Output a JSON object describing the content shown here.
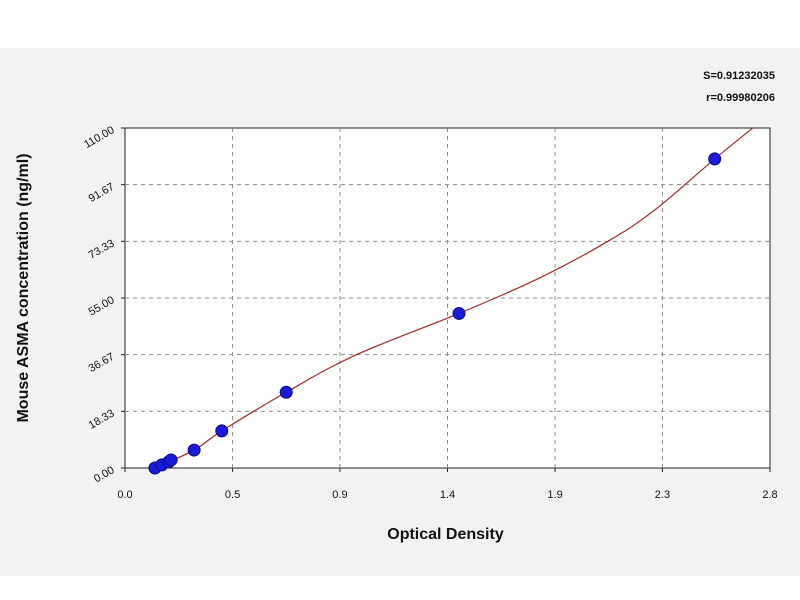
{
  "chart_data": {
    "type": "scatter",
    "xlabel": "Optical Density",
    "ylabel": "Mouse ASMA concentration (ng/ml)",
    "xlim": [
      0.0,
      2.8
    ],
    "ylim": [
      0.0,
      110.0
    ],
    "x_ticks": [
      {
        "value": 0.0,
        "label": "0.0"
      },
      {
        "value": 0.467,
        "label": "0.5"
      },
      {
        "value": 0.933,
        "label": "0.9"
      },
      {
        "value": 1.4,
        "label": "1.4"
      },
      {
        "value": 1.867,
        "label": "1.9"
      },
      {
        "value": 2.333,
        "label": "2.3"
      },
      {
        "value": 2.8,
        "label": "2.8"
      }
    ],
    "y_ticks": [
      {
        "value": 0.0,
        "label": "0.00"
      },
      {
        "value": 18.33,
        "label": "18.33"
      },
      {
        "value": 36.67,
        "label": "36.67"
      },
      {
        "value": 55.0,
        "label": "55.00"
      },
      {
        "value": 73.33,
        "label": "73.33"
      },
      {
        "value": 91.67,
        "label": "91.67"
      },
      {
        "value": 110.0,
        "label": "110.00"
      }
    ],
    "grid": true,
    "series": [
      {
        "points": [
          {
            "x": 0.13,
            "y": 0.0
          },
          {
            "x": 0.16,
            "y": 1.0
          },
          {
            "x": 0.19,
            "y": 2.0
          },
          {
            "x": 0.2,
            "y": 2.6
          },
          {
            "x": 0.3,
            "y": 5.8
          },
          {
            "x": 0.42,
            "y": 12.0
          },
          {
            "x": 0.7,
            "y": 24.5
          },
          {
            "x": 1.45,
            "y": 50.0
          },
          {
            "x": 2.56,
            "y": 100.0
          }
        ],
        "color": "#1a1adf"
      }
    ],
    "fit_curve": {
      "color": "#a52a2a",
      "points": [
        {
          "x": 0.13,
          "y": 0.0
        },
        {
          "x": 0.3,
          "y": 5.8
        },
        {
          "x": 0.42,
          "y": 12.0
        },
        {
          "x": 0.7,
          "y": 24.5
        },
        {
          "x": 1.0,
          "y": 36.5
        },
        {
          "x": 1.45,
          "y": 50.0
        },
        {
          "x": 1.8,
          "y": 61.5
        },
        {
          "x": 2.1,
          "y": 73.5
        },
        {
          "x": 2.3,
          "y": 83.5
        },
        {
          "x": 2.56,
          "y": 100.0
        },
        {
          "x": 2.75,
          "y": 111.5
        }
      ]
    },
    "stats": {
      "s_label": "S=0.91232035",
      "r_label": "r=0.99980206"
    }
  }
}
